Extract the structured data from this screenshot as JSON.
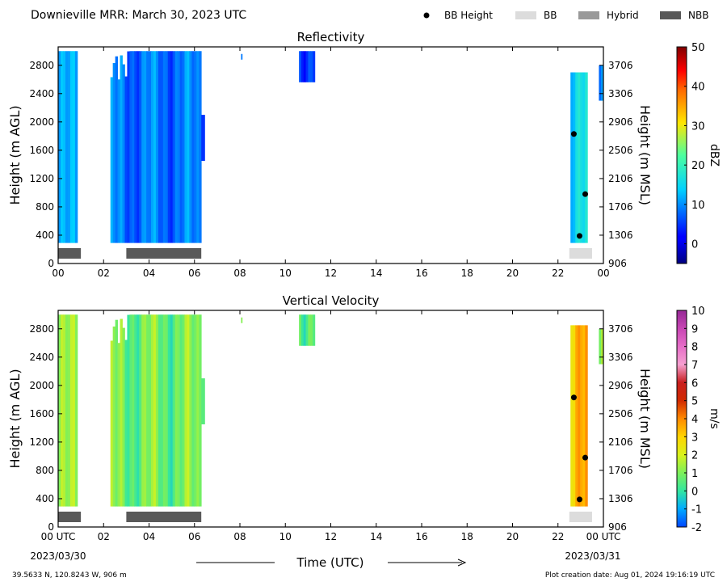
{
  "header": {
    "title": "Downieville MRR:  March 30, 2023 UTC",
    "legend": [
      {
        "label": "BB Height",
        "kind": "dot",
        "color": "#000000"
      },
      {
        "label": "BB",
        "kind": "box",
        "color": "#dcdcdc"
      },
      {
        "label": "Hybrid",
        "kind": "box",
        "color": "#999999"
      },
      {
        "label": "NBB",
        "kind": "box",
        "color": "#595959"
      }
    ]
  },
  "footer": {
    "coords": "39.5633 N, 120.8243 W, 906 m",
    "creation": "Plot creation date: Aug 01, 2024 19:16:19 UTC",
    "xlabel": "Time (UTC)",
    "date_start": "2023/03/30",
    "date_end": "2023/03/31"
  },
  "colors": {
    "bb": "#dcdcdc",
    "nbb": "#595959",
    "marker": "#000000"
  },
  "chart_data": [
    {
      "type": "heatmap",
      "title": "Reflectivity",
      "ylabel": "Height (m AGL)",
      "ylabel_right": "Height (m MSL)",
      "xlim": [
        0,
        24
      ],
      "ylim": [
        0,
        3060
      ],
      "x_ticks": [
        "00",
        "02",
        "04",
        "06",
        "08",
        "10",
        "12",
        "14",
        "16",
        "18",
        "20",
        "22",
        "00"
      ],
      "y_ticks": [
        0,
        400,
        800,
        1200,
        1600,
        2000,
        2400,
        2800
      ],
      "y_ticks_right": [
        906,
        1306,
        1706,
        2106,
        2506,
        2906,
        3306,
        3706
      ],
      "colorbar": {
        "label": "dBZ",
        "min": -5,
        "max": 50,
        "ticks": [
          0,
          10,
          20,
          30,
          40,
          50
        ],
        "palette": "jet"
      },
      "echo_regions": [
        {
          "t0": 0.0,
          "t1": 0.85,
          "h0": 290,
          "h1": 3000,
          "value": 10
        },
        {
          "t0": 2.3,
          "t1": 6.3,
          "h0": 290,
          "h1": 3000,
          "value": 8
        },
        {
          "t0": 6.3,
          "t1": 6.45,
          "h0": 1450,
          "h1": 2100,
          "value": 4
        },
        {
          "t0": 8.05,
          "t1": 8.1,
          "h0": 2880,
          "h1": 2960,
          "value": 8
        },
        {
          "t0": 10.6,
          "t1": 11.3,
          "h0": 2560,
          "h1": 3000,
          "value": 6
        },
        {
          "t0": 22.55,
          "t1": 23.3,
          "h0": 290,
          "h1": 2700,
          "value": 16
        },
        {
          "t0": 23.8,
          "t1": 24.0,
          "h0": 2300,
          "h1": 2800,
          "value": 8
        }
      ],
      "bb_height": [
        {
          "t": 22.7,
          "h": 1830
        },
        {
          "t": 23.2,
          "h": 980
        },
        {
          "t": 22.95,
          "h": 390
        }
      ],
      "bb_type_bars": [
        {
          "t0": 0.0,
          "t1": 1.0,
          "type": "NBB"
        },
        {
          "t0": 3.0,
          "t1": 6.3,
          "type": "NBB"
        },
        {
          "t0": 22.5,
          "t1": 23.5,
          "type": "BB"
        }
      ]
    },
    {
      "type": "heatmap",
      "title": "Vertical Velocity",
      "ylabel": "Height (m AGL)",
      "ylabel_right": "Height (m MSL)",
      "xlim": [
        0,
        24
      ],
      "ylim": [
        0,
        3060
      ],
      "x_ticks": [
        "00 UTC",
        "02",
        "04",
        "06",
        "08",
        "10",
        "12",
        "14",
        "16",
        "18",
        "20",
        "22",
        "00 UTC"
      ],
      "y_ticks": [
        0,
        400,
        800,
        1200,
        1600,
        2000,
        2400,
        2800
      ],
      "y_ticks_right": [
        906,
        1306,
        1706,
        2106,
        2506,
        2906,
        3306,
        3706
      ],
      "colorbar": {
        "label": "m/s",
        "min": -2,
        "max": 10,
        "ticks": [
          -2,
          -1,
          0,
          1,
          2,
          3,
          4,
          5,
          6,
          7,
          8,
          9,
          10
        ],
        "palette": "velocity"
      },
      "echo_regions": [
        {
          "t0": 0.0,
          "t1": 0.85,
          "h0": 290,
          "h1": 3000,
          "value": 1
        },
        {
          "t0": 2.3,
          "t1": 6.3,
          "h0": 290,
          "h1": 3000,
          "value": 0.8
        },
        {
          "t0": 6.3,
          "t1": 6.45,
          "h0": 1450,
          "h1": 2100,
          "value": 0.5
        },
        {
          "t0": 8.05,
          "t1": 8.1,
          "h0": 2880,
          "h1": 2960,
          "value": 1
        },
        {
          "t0": 10.6,
          "t1": 11.3,
          "h0": 2560,
          "h1": 3000,
          "value": 0.8
        },
        {
          "t0": 22.55,
          "t1": 23.3,
          "h0": 290,
          "h1": 2850,
          "value": 3.5
        },
        {
          "t0": 23.8,
          "t1": 24.0,
          "h0": 2300,
          "h1": 2800,
          "value": 1
        }
      ],
      "bb_height": [
        {
          "t": 22.7,
          "h": 1830
        },
        {
          "t": 23.2,
          "h": 980
        },
        {
          "t": 22.95,
          "h": 390
        }
      ],
      "bb_type_bars": [
        {
          "t0": 0.0,
          "t1": 1.0,
          "type": "NBB"
        },
        {
          "t0": 3.0,
          "t1": 6.3,
          "type": "NBB"
        },
        {
          "t0": 22.5,
          "t1": 23.5,
          "type": "BB"
        }
      ]
    }
  ]
}
